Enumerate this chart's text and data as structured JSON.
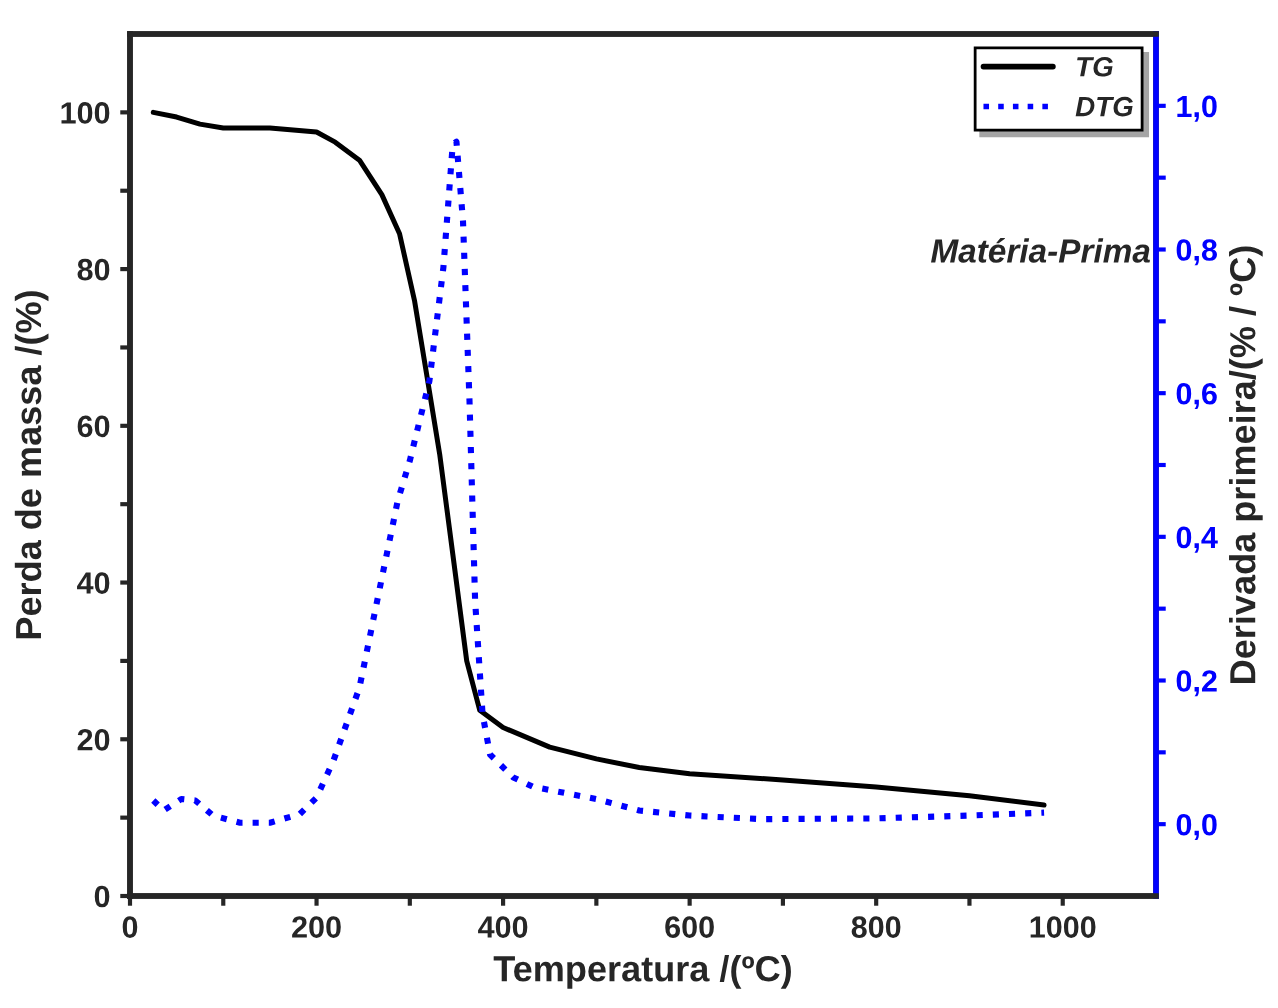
{
  "chart_data": {
    "type": "line",
    "xlabel": "Temperatura /(ºC)",
    "ylabel": "Perda de massa /(%)",
    "y2label": "Derivada primeira/(% / ºC)",
    "annotations": [
      "Matéria-Prima"
    ],
    "xlim": [
      0,
      1100
    ],
    "ylim": [
      0,
      110
    ],
    "y2lim": [
      -0.1,
      1.1
    ],
    "xticks": [
      0,
      {
        "value": 100,
        "label": null
      },
      200,
      {
        "value": 300,
        "label": null
      },
      400,
      {
        "value": 500,
        "label": null
      },
      600,
      {
        "value": 700,
        "label": null
      },
      800,
      {
        "value": 900,
        "label": null
      },
      1000
    ],
    "yticks": [
      0,
      {
        "value": 10,
        "label": null
      },
      20,
      {
        "value": 30,
        "label": null
      },
      40,
      {
        "value": 50,
        "label": null
      },
      60,
      {
        "value": 70,
        "label": null
      },
      80,
      {
        "value": 90,
        "label": null
      },
      100
    ],
    "y2ticks": [
      {
        "value": 0.0,
        "label": "0,0"
      },
      {
        "value": 0.1,
        "label": null
      },
      {
        "value": 0.2,
        "label": "0,2"
      },
      {
        "value": 0.3,
        "label": null
      },
      {
        "value": 0.4,
        "label": "0,4"
      },
      {
        "value": 0.5,
        "label": null
      },
      {
        "value": 0.6,
        "label": "0,6"
      },
      {
        "value": 0.7,
        "label": null
      },
      {
        "value": 0.8,
        "label": "0,8"
      },
      {
        "value": 0.9,
        "label": null
      },
      {
        "value": 1.0,
        "label": "1,0"
      }
    ],
    "grid": false,
    "legend": "top right",
    "series": [
      {
        "name": "TG",
        "color": "#000000",
        "line_style": "solid",
        "x": [
          25,
          50,
          75,
          100,
          150,
          200,
          220,
          246,
          270,
          289,
          305,
          318,
          332,
          346,
          361,
          375,
          400,
          450,
          500,
          546,
          600,
          700,
          800,
          900,
          980
        ],
        "values": [
          100,
          99.4,
          98.5,
          98,
          98,
          97.5,
          96.2,
          93.9,
          89.5,
          84.5,
          76,
          66.6,
          56.4,
          43.7,
          30,
          23.7,
          21.5,
          19,
          17.5,
          16.4,
          15.6,
          14.8,
          13.9,
          12.8,
          11.6
        ]
      },
      {
        "name": "DTG",
        "color": "#0000ff",
        "line_style": "dotted",
        "axis": "y2",
        "x": [
          25,
          36,
          55,
          70,
          89,
          118,
          150,
          182,
          200,
          218,
          246,
          268,
          287,
          300,
          321,
          336,
          346,
          350,
          357,
          364,
          370,
          378,
          386,
          411,
          432,
          500,
          546,
          600,
          678,
          800,
          900,
          980
        ],
        "values": [
          0.033,
          0.019,
          0.035,
          0.033,
          0.012,
          0.002,
          0.002,
          0.014,
          0.037,
          0.088,
          0.19,
          0.33,
          0.45,
          0.506,
          0.617,
          0.775,
          0.946,
          0.95,
          0.84,
          0.589,
          0.311,
          0.153,
          0.097,
          0.065,
          0.052,
          0.035,
          0.019,
          0.012,
          0.007,
          0.008,
          0.012,
          0.016
        ]
      }
    ]
  }
}
